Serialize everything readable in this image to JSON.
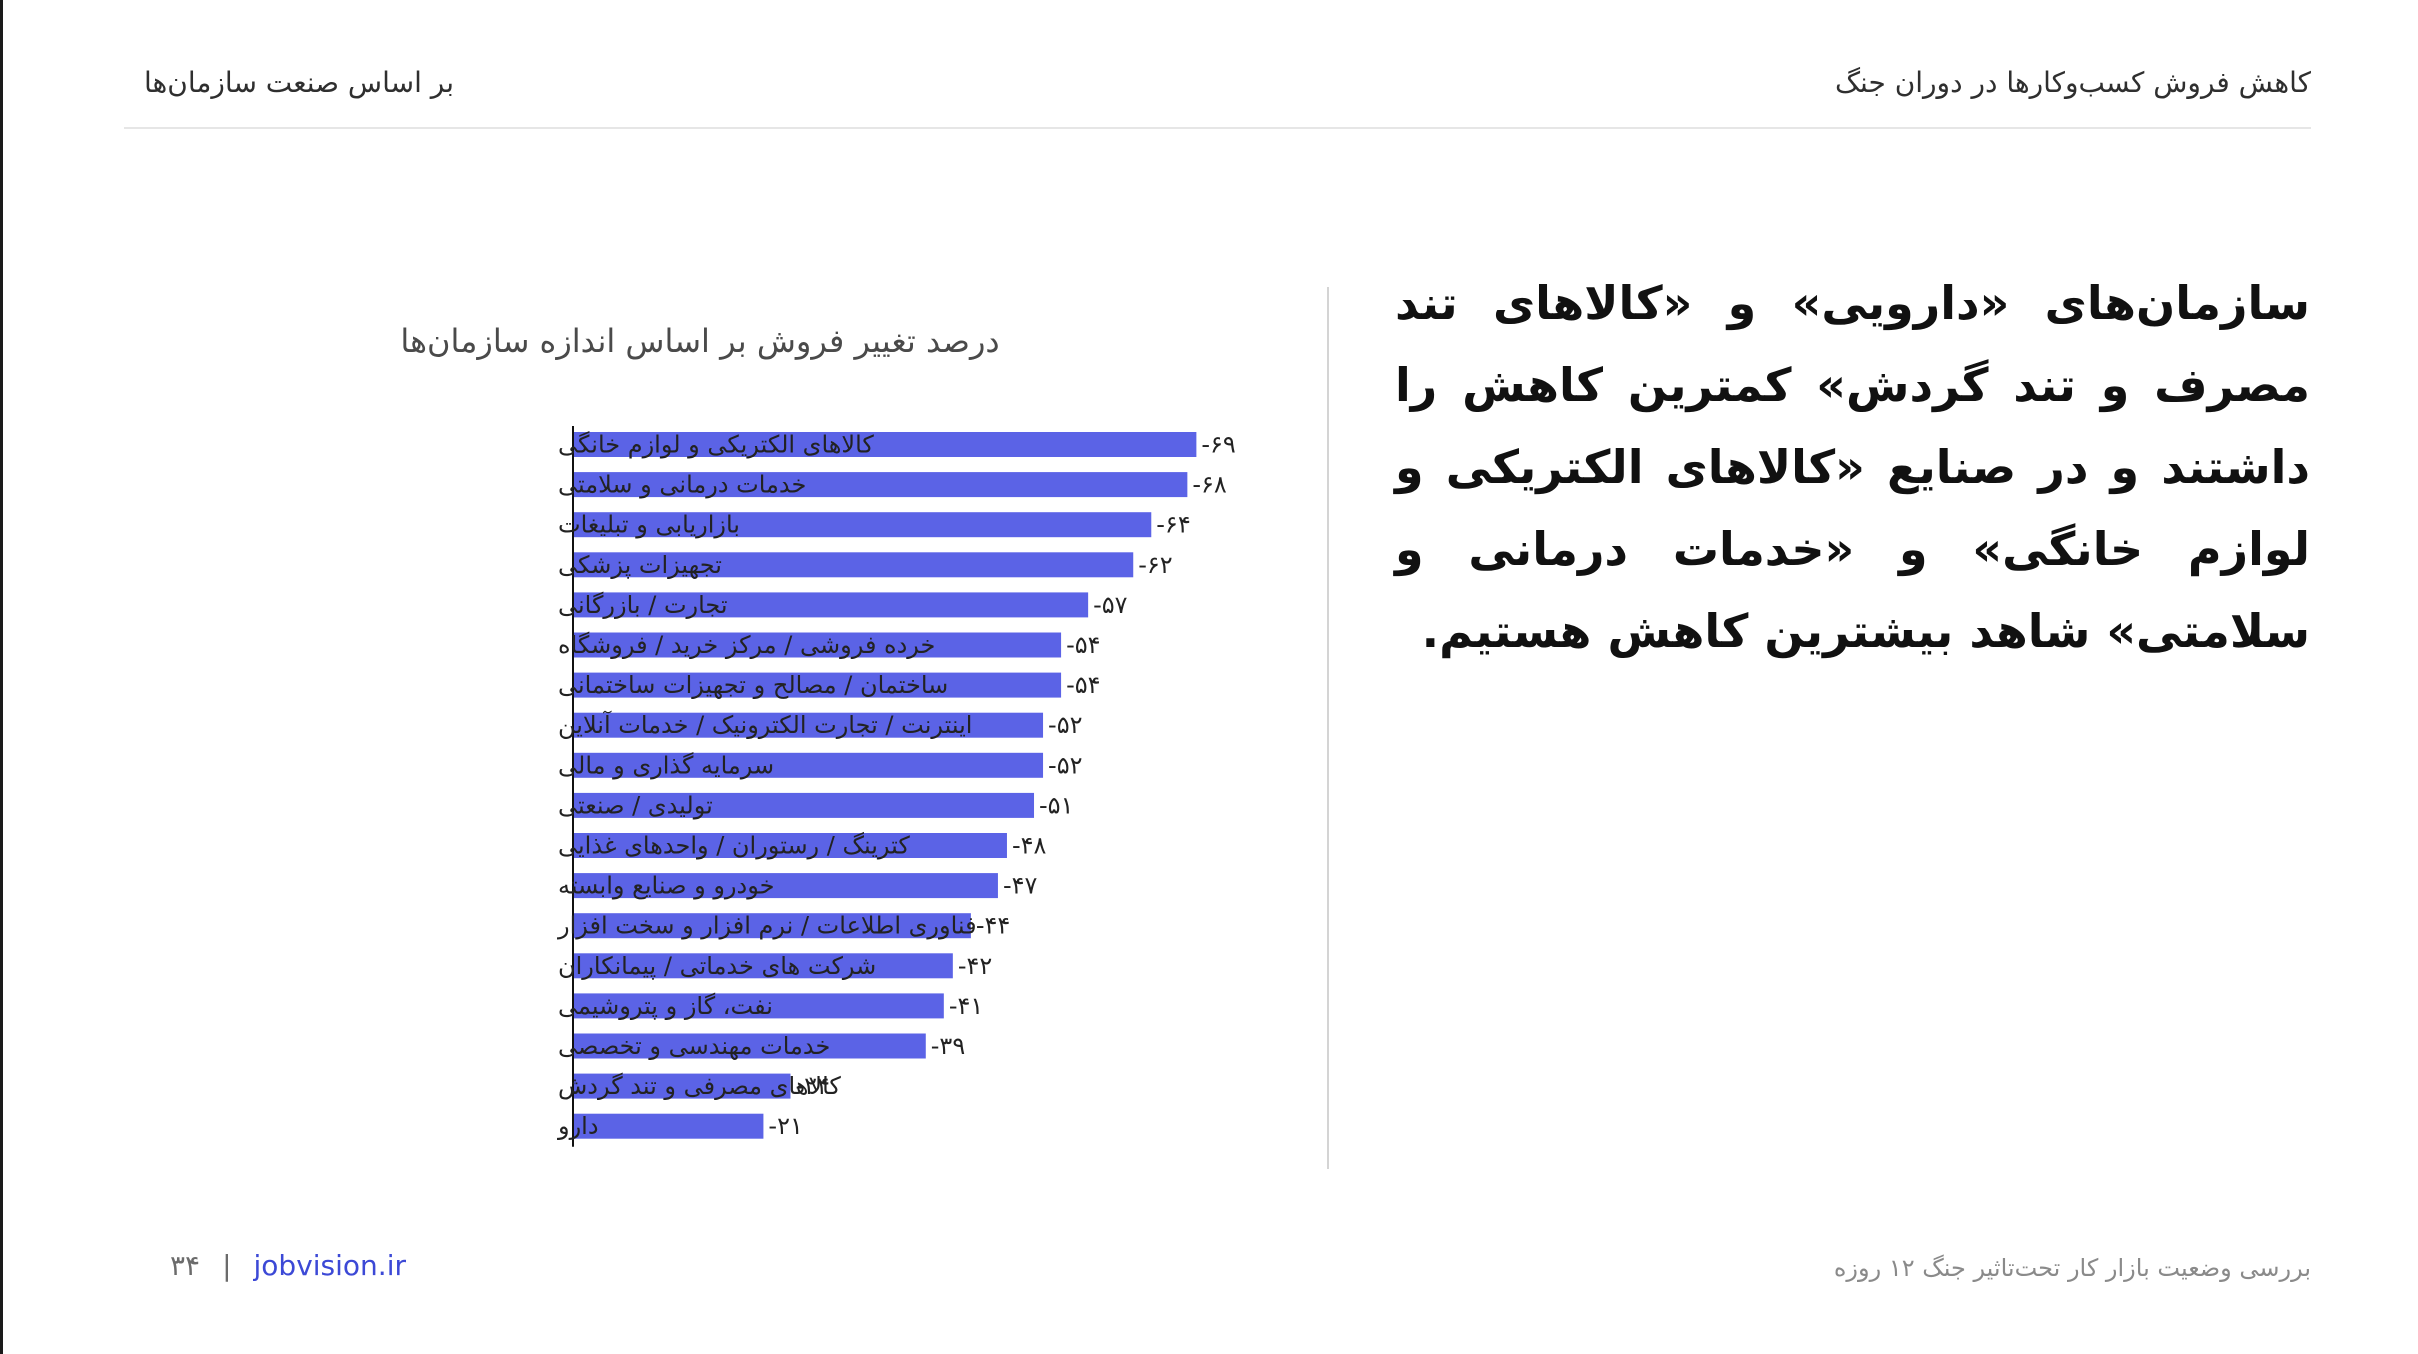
{
  "header": {
    "title": "کاهش فروش کسب‌وکارها در دوران جنگ",
    "subtitle": "بر اساس صنعت سازمان‌ها"
  },
  "statement": "سازمان‌های «دارویی» و «کالاهای تند مصرف و تند گردش» کمترین کاهش را داشتند و در صنایع «کالاهای الکتریکی و لوازم خانگی» و «خدمات درمانی و سلامتی» شاهد بیشترین کاهش هستیم.",
  "footer": {
    "report_title": "بررسی وضعیت بازار کار تحت‌تاثیر جنگ ۱۲ روزه",
    "website": "jobvision.ir",
    "page_number": "۳۴",
    "separator": "|"
  },
  "colors": {
    "bar": "#5b63e6",
    "link": "#3c49d6",
    "axis": "#111111"
  },
  "chart_data": {
    "type": "bar",
    "orientation": "horizontal",
    "title": "درصد تغییر فروش بر اساس اندازه سازمان‌ها",
    "categories": [
      "کالاهای الکتریکی و لوازم خانگی",
      "خدمات درمانی و سلامتی",
      "بازاریابی و تبلیغات",
      "تجهیزات پزشکی",
      "تجارت / بازرگانی",
      "خرده فروشی / مرکز خرید / فروشگاه",
      "ساختمان / مصالح و تجهیزات ساختمانی",
      "اینترنت / تجارت الکترونیک / خدمات آنلاین",
      "سرمایه گذاری و مالی",
      "تولیدی / صنعتی",
      "کترینگ / رستوران / واحدهای غذایی",
      "خودرو و صنایع وابسته",
      "فناوری اطلاعات / نرم افزار و سخت افزار",
      "شرکت های خدماتی / پیمانکاران",
      "نفت، گاز و پتروشیمی",
      "خدمات مهندسی و تخصصی",
      "کالاهای مصرفی و تند گردش",
      "دارو"
    ],
    "values": [
      -69,
      -68,
      -64,
      -62,
      -57,
      -54,
      -54,
      -52,
      -52,
      -51,
      -48,
      -47,
      -44,
      -42,
      -41,
      -39,
      -24,
      -21
    ],
    "value_labels": [
      "-۶۹",
      "-۶۸",
      "-۶۴",
      "-۶۲",
      "-۵۷",
      "-۵۴",
      "-۵۴",
      "-۵۲",
      "-۵۲",
      "-۵۱",
      "-۴۸",
      "-۴۷",
      "-۴۴",
      "-۴۲",
      "-۴۱",
      "-۳۹",
      "-۲۴",
      "-۲۱"
    ],
    "xlim": [
      0,
      -70
    ],
    "grid": false,
    "legend": "none"
  }
}
